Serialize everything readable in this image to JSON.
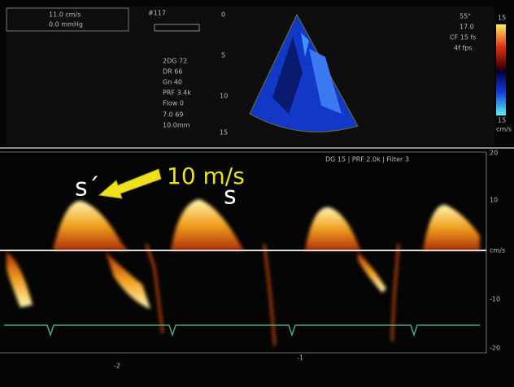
{
  "header": {
    "scale_box": [
      "11.0 cm/s",
      "0.0 mmHg"
    ],
    "frame": "#117"
  },
  "params": [
    "2DG 72",
    "DR 66",
    "Gn 40",
    "PRF 3.4k",
    "Flow 0",
    "7.0 69",
    "10.0mm"
  ],
  "depth_scale": [
    "0",
    "5",
    "10",
    "15"
  ],
  "settings": [
    "55°",
    "17.0",
    "CF 15 fs",
    "4f fps"
  ],
  "color_bar": {
    "top": "15",
    "bottom": "15",
    "unit": "cm/s"
  },
  "doppler": {
    "settings": "DG 15 | PRF 2.0k | Filter 3",
    "annotations": {
      "s_prime": "s´",
      "velocity": "10 m/s",
      "s": "s"
    },
    "velocity_scale": [
      "20",
      "10",
      "cm/s",
      "-10",
      "-20"
    ],
    "time_scale": [
      "-2",
      "-1"
    ]
  }
}
